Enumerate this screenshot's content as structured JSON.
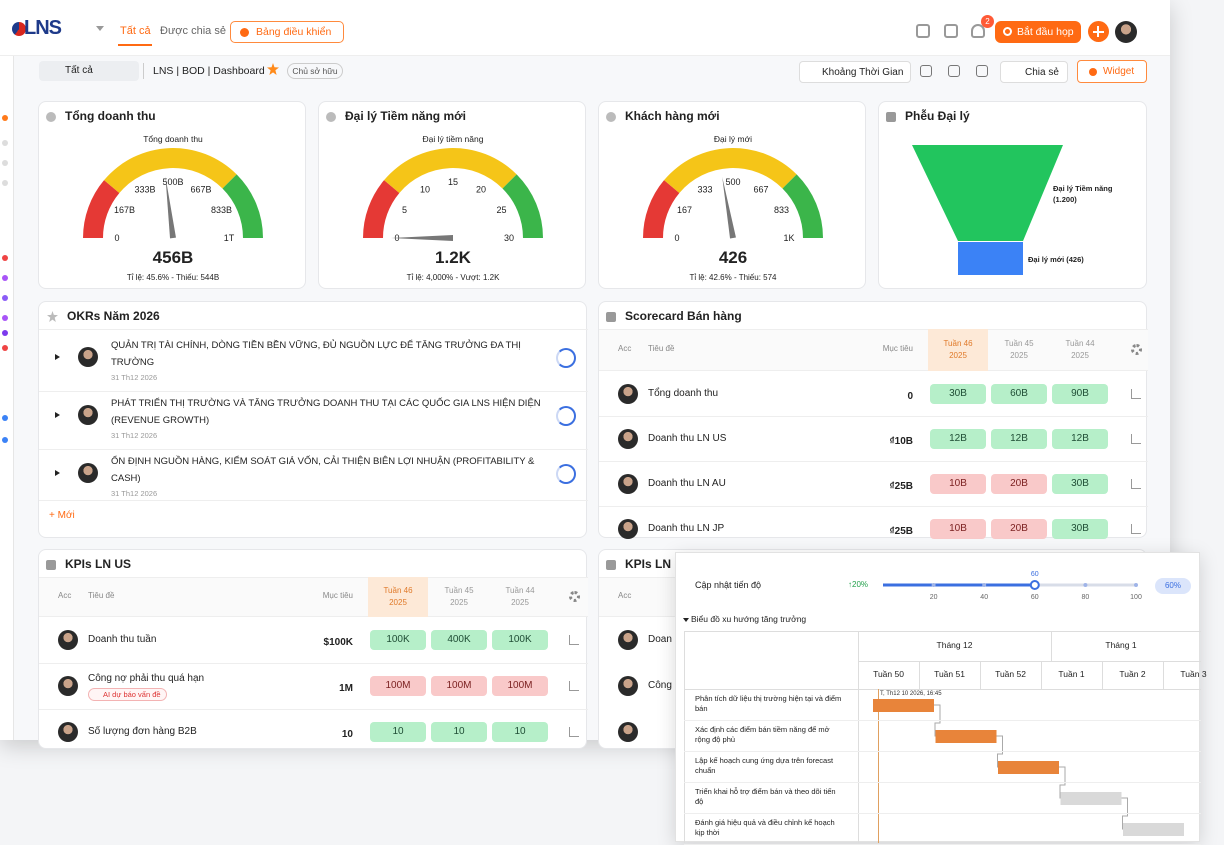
{
  "header": {
    "logo": "LNS",
    "tabs": [
      "Tất cả",
      "Được chia sẻ"
    ],
    "dashboard_button": "Bảng điều khiển",
    "notification_count": "2",
    "meeting_button": "Bắt đầu họp"
  },
  "toolbar": {
    "filter": "Tất cả",
    "breadcrumb": "LNS | BOD | Dashboard",
    "owner_tag": "Chủ sở hữu",
    "time_range": "Khoảng Thời Gian",
    "share": "Chia sẻ",
    "widget": "Widget"
  },
  "gauges": [
    {
      "title": "Tổng doanh thu",
      "subtitle": "Tổng doanh thu",
      "ticks": [
        "0",
        "167B",
        "333B",
        "500B",
        "667B",
        "833B",
        "1T"
      ],
      "value": "456B",
      "footer": "Tỉ lệ: 45.6% - Thiếu: 544B"
    },
    {
      "title": "Đại lý Tiềm năng mới",
      "subtitle": "Đại lý tiềm năng",
      "ticks": [
        "0",
        "5",
        "10",
        "15",
        "20",
        "25",
        "30"
      ],
      "value": "1.2K",
      "footer": "Tỉ lệ: 4,000% - Vượt: 1.2K"
    },
    {
      "title": "Khách hàng mới",
      "subtitle": "Đại lý mới",
      "ticks": [
        "0",
        "167",
        "333",
        "500",
        "667",
        "833",
        "1K"
      ],
      "value": "426",
      "footer": "Tỉ lệ: 42.6% - Thiếu: 574"
    }
  ],
  "funnel": {
    "title": "Phễu Đại lý",
    "stages": [
      "Đại lý Tiềm năng (1.200)",
      "Đại lý mới (426)"
    ]
  },
  "okrs": {
    "title": "OKRs Năm 2026",
    "items": [
      {
        "text": "QUẢN TRỊ TÀI CHÍNH, DÒNG TIỀN BỀN VỮNG, ĐỦ NGUỒN LỰC ĐỂ TĂNG TRƯỞNG ĐA THỊ TRƯỜNG",
        "date": "31 Th12 2026"
      },
      {
        "text": "PHÁT TRIỂN THỊ TRƯỜNG VÀ TĂNG TRƯỞNG DOANH THU TẠI CÁC QUỐC GIA LNS HIỆN DIỆN (REVENUE GROWTH)",
        "date": "31 Th12 2026"
      },
      {
        "text": "ỔN ĐỊNH NGUỒN HÀNG, KIỂM SOÁT GIÁ VỐN, CẢI THIỆN BIÊN LỢI NHUẬN (PROFITABILITY & CASH)",
        "date": "31 Th12 2026"
      }
    ],
    "add": "+ Mới"
  },
  "scorecard": {
    "title": "Scorecard Bán hàng",
    "columns": [
      "Acc",
      "Tiêu đề",
      "Mục tiêu",
      "Tuần 46 2025",
      "Tuần 45 2025",
      "Tuần 44 2025"
    ],
    "rows": [
      {
        "title": "Tổng doanh thu",
        "target": "0",
        "cells": [
          "30B",
          "60B",
          "90B"
        ],
        "status": [
          "green",
          "green",
          "green"
        ]
      },
      {
        "title": "Doanh thu LN US",
        "target": "₫10B",
        "cells": [
          "12B",
          "12B",
          "12B"
        ],
        "status": [
          "green",
          "green",
          "green"
        ]
      },
      {
        "title": "Doanh thu LN AU",
        "target": "₫25B",
        "cells": [
          "10B",
          "20B",
          "30B"
        ],
        "status": [
          "red",
          "red",
          "green"
        ]
      },
      {
        "title": "Doanh thu LN JP",
        "target": "₫25B",
        "cells": [
          "10B",
          "20B",
          "30B"
        ],
        "status": [
          "red",
          "red",
          "green"
        ]
      }
    ]
  },
  "kpis": {
    "title": "KPIs LN US",
    "columns": [
      "Acc",
      "Tiêu đề",
      "Mục tiêu",
      "Tuần 46 2025",
      "Tuần 45 2025",
      "Tuần 44 2025"
    ],
    "rows": [
      {
        "title": "Doanh thu tuần",
        "target": "$100K",
        "cells": [
          "100K",
          "400K",
          "100K"
        ],
        "status": [
          "green",
          "green",
          "green"
        ]
      },
      {
        "title": "Công nợ phải thu quá hạn",
        "tag": "AI dự báo vấn đề",
        "target": "1M",
        "cells": [
          "100M",
          "100M",
          "100M"
        ],
        "status": [
          "red",
          "red",
          "red"
        ]
      },
      {
        "title": "Số lượng đơn hàng B2B",
        "target": "10",
        "cells": [
          "10",
          "10",
          "10"
        ],
        "status": [
          "green",
          "green",
          "green"
        ]
      }
    ]
  },
  "kpis_second": {
    "title": "KPIs LN I",
    "columns": [
      "Acc"
    ],
    "rows": [
      "Doan",
      "Công"
    ]
  },
  "progress": {
    "label": "Cập nhật tiến độ",
    "start_label": "↑20%",
    "value": 60,
    "xlim": [
      0,
      100
    ],
    "xticks": [
      20,
      40,
      60,
      80,
      100
    ],
    "value_label": "60%"
  },
  "gantt": {
    "title": "Biểu đồ xu hướng tăng trưởng",
    "months": [
      "Tháng 12",
      "Tháng 1"
    ],
    "weeks": [
      "Tuần 50",
      "Tuần 51",
      "Tuần 52",
      "Tuần 1",
      "Tuần 2",
      "Tuần 3"
    ],
    "tooltip": "T, Th12 10 2026, 16:45",
    "tasks": [
      "Phân tích dữ liệu thị trường hiện tại và điểm bán",
      "Xác định các điểm bán tiềm năng để mở rộng độ phủ",
      "Lập kế hoạch cung ứng dựa trên forecast chuẩn",
      "Triển khai hỗ trợ điểm bán và theo dõi tiến độ",
      "Đánh giá hiệu quả và điều chỉnh kế hoạch kịp thời"
    ]
  }
}
